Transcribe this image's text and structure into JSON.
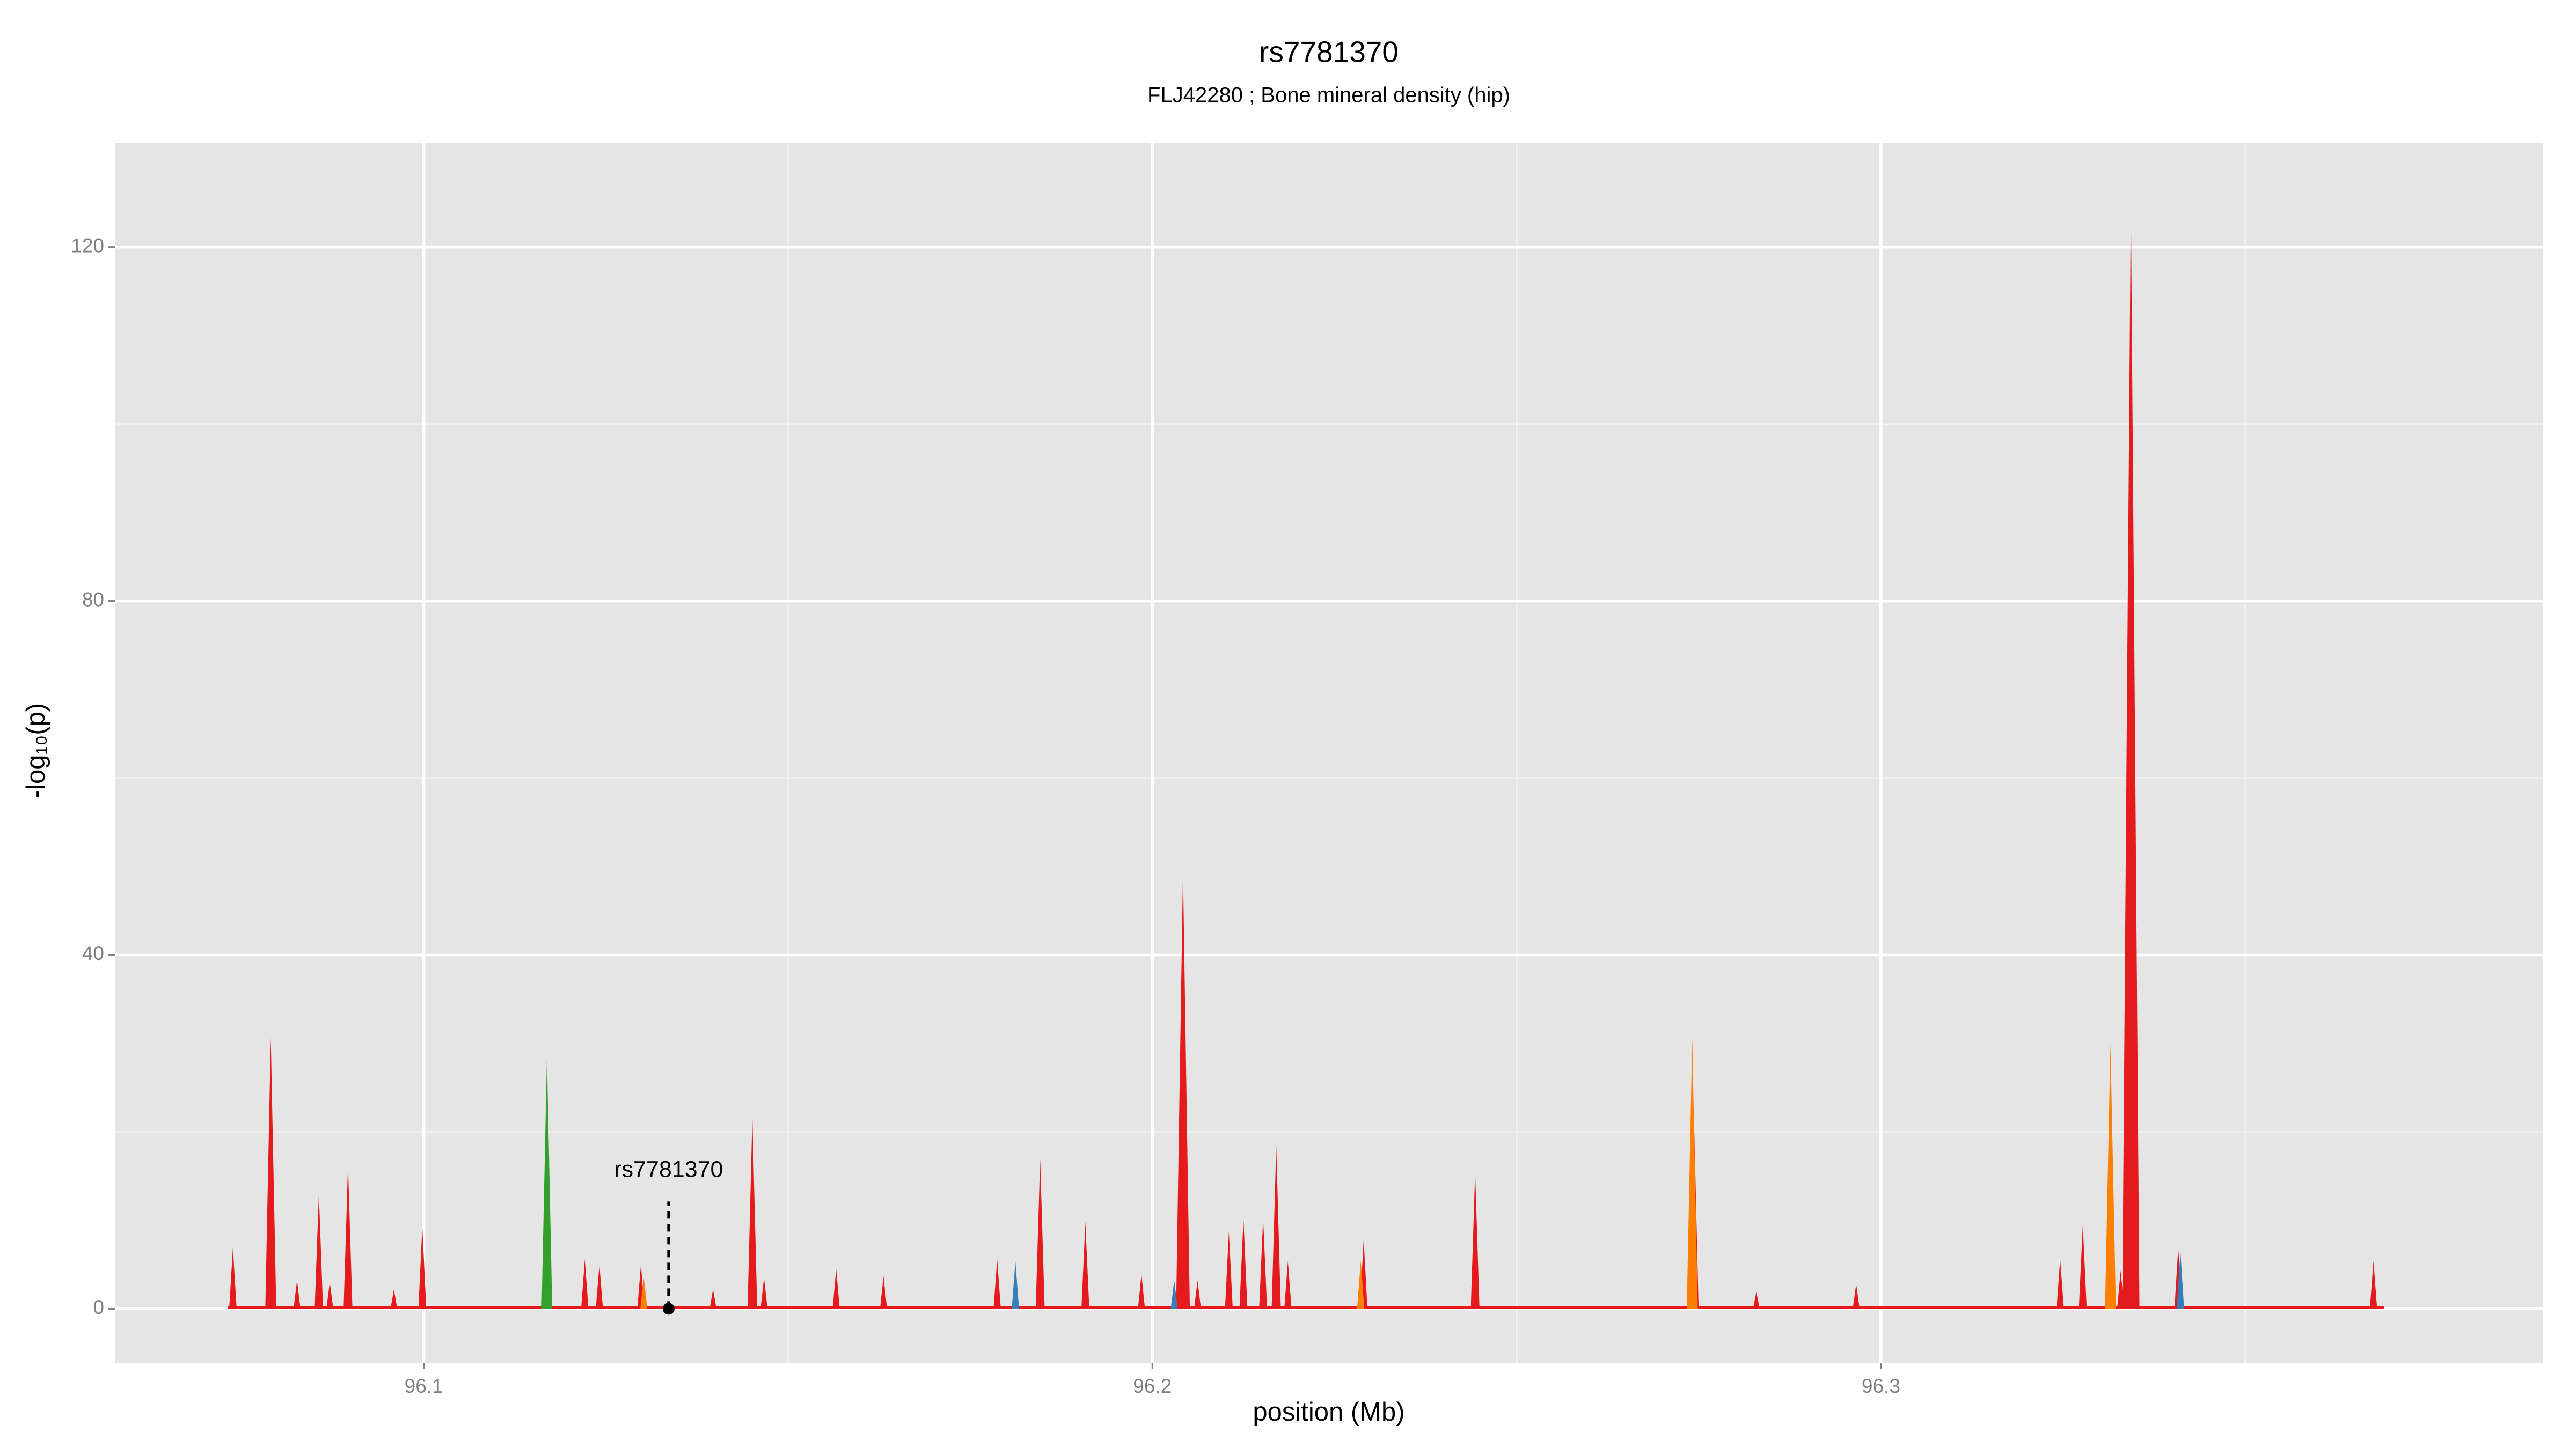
{
  "chart_data": {
    "type": "spike",
    "title": "rs7781370",
    "subtitle": "FLJ42280 ; Bone mineral density (hip)",
    "xlabel": "position (Mb)",
    "ylabel": "-log₁₀(p)",
    "xlim": [
      96.0576,
      96.3909
    ],
    "ylim": [
      -6.1,
      131.8
    ],
    "xticks": [
      96.1,
      96.2,
      96.3
    ],
    "yticks": [
      0,
      40,
      80,
      120
    ],
    "x_minor_grid": [
      96.15,
      96.25,
      96.35
    ],
    "y_minor_grid": [
      20,
      60,
      100
    ],
    "grid": true,
    "series": [
      {
        "color": "#e41a1c",
        "x": [
          96.0738,
          96.079,
          96.0826,
          96.0856,
          96.0871,
          96.0896,
          96.0959,
          96.0998,
          96.1221,
          96.1241,
          96.1298,
          96.1397,
          96.1451,
          96.1467,
          96.1566,
          96.1631,
          96.1787,
          96.1846,
          96.1908,
          96.1985,
          96.2042,
          96.2062,
          96.2105,
          96.2125,
          96.2152,
          96.217,
          96.2186,
          96.229,
          96.2443,
          96.2743,
          96.2829,
          96.2966,
          96.3246,
          96.3277,
          96.3329,
          96.3343,
          96.3408,
          96.3676
        ],
        "values": [
          6.9,
          30.6,
          3.2,
          13,
          3,
          16.2,
          2.2,
          9.3,
          5.6,
          5,
          5,
          2.2,
          21.7,
          3.5,
          4.5,
          3.7,
          5.6,
          16.9,
          9.8,
          3.9,
          49.4,
          3.2,
          8.7,
          10.2,
          10.2,
          18.4,
          5.4,
          7.8,
          15.4,
          22.7,
          1.9,
          2.8,
          5.6,
          9.5,
          4.3,
          125.3,
          6.9,
          5.4
        ]
      },
      {
        "color": "#ff7f00",
        "x": [
          96.2741,
          96.3315,
          96.2286,
          96.1302
        ],
        "values": [
          30.6,
          29.9,
          5.4,
          3.5
        ]
      },
      {
        "color": "#377eb8",
        "x": [
          96.1812,
          96.203,
          96.3411
        ],
        "values": [
          5.4,
          3.2,
          6.5
        ]
      },
      {
        "color": "#33a02c",
        "x": [
          96.1169
        ],
        "values": [
          28.4
        ]
      }
    ],
    "annotation": {
      "text": "rs7781370",
      "x": 96.1336,
      "y": 0
    }
  }
}
